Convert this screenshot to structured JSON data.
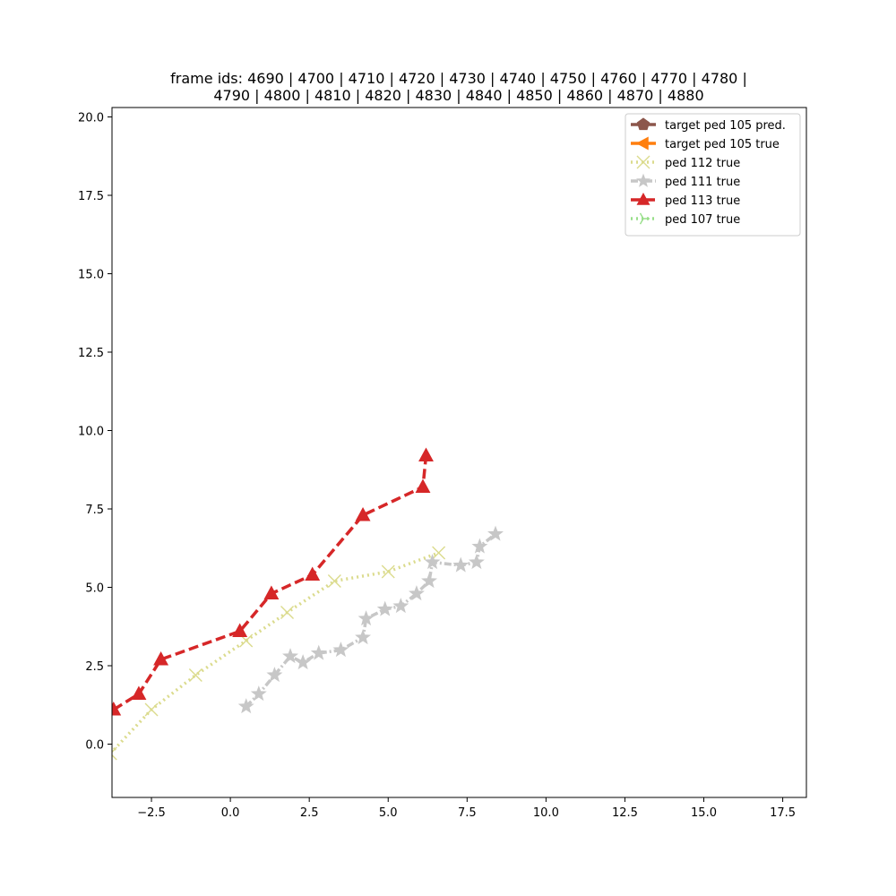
{
  "chart_data": {
    "type": "line",
    "title_lines": [
      "frame ids: 4690 | 4700 | 4710 | 4720 | 4730 | 4740 | 4750 | 4760 | 4770 | 4780 |",
      "4790 | 4800 | 4810 | 4820 | 4830 | 4840 | 4850 | 4860 | 4870 | 4880"
    ],
    "xlabel": "",
    "ylabel": "",
    "xlim": [
      -3.75,
      18.25
    ],
    "ylim": [
      -1.7,
      20.3
    ],
    "x_ticks": [
      -2.5,
      0.0,
      2.5,
      5.0,
      7.5,
      10.0,
      12.5,
      15.0,
      17.5
    ],
    "x_tick_labels": [
      "−2.5",
      "0.0",
      "2.5",
      "5.0",
      "7.5",
      "10.0",
      "12.5",
      "15.0",
      "17.5"
    ],
    "y_ticks": [
      0.0,
      2.5,
      5.0,
      7.5,
      10.0,
      12.5,
      15.0,
      17.5,
      20.0
    ],
    "y_tick_labels": [
      "0.0",
      "2.5",
      "5.0",
      "7.5",
      "10.0",
      "12.5",
      "15.0",
      "17.5",
      "20.0"
    ],
    "grid": false,
    "legend_position": "top-right",
    "series": [
      {
        "name": "target ped 105 pred.",
        "color": "#8c564b",
        "line_style": "solid",
        "marker": "pentagon",
        "points": []
      },
      {
        "name": "target ped 105 true",
        "color": "#ff7f0e",
        "line_style": "solid",
        "marker": "triangle-left",
        "points": []
      },
      {
        "name": "ped 112 true",
        "color": "#dbdb8d",
        "line_style": "dotted",
        "marker": "x",
        "points": [
          [
            -3.8,
            -0.3
          ],
          [
            -2.5,
            1.1
          ],
          [
            -1.1,
            2.2
          ],
          [
            0.5,
            3.3
          ],
          [
            1.8,
            4.2
          ],
          [
            3.3,
            5.2
          ],
          [
            5.0,
            5.5
          ],
          [
            6.6,
            6.1
          ]
        ]
      },
      {
        "name": "ped 111 true",
        "color": "#c7c7c7",
        "line_style": "mixed",
        "marker": "star",
        "points": [
          [
            0.5,
            1.2
          ],
          [
            0.9,
            1.6
          ],
          [
            1.4,
            2.2
          ],
          [
            1.9,
            2.8
          ],
          [
            2.3,
            2.6
          ],
          [
            2.8,
            2.9
          ],
          [
            3.5,
            3.0
          ],
          [
            4.2,
            3.4
          ],
          [
            4.3,
            4.0
          ],
          [
            4.9,
            4.3
          ],
          [
            5.4,
            4.4
          ],
          [
            5.9,
            4.8
          ],
          [
            6.3,
            5.2
          ],
          [
            6.4,
            5.8
          ],
          [
            7.3,
            5.7
          ],
          [
            7.8,
            5.8
          ],
          [
            7.9,
            6.3
          ],
          [
            8.4,
            6.7
          ]
        ]
      },
      {
        "name": "ped 113 true",
        "color": "#d62728",
        "line_style": "dashed",
        "marker": "triangle",
        "points": [
          [
            -3.7,
            1.1
          ],
          [
            -2.9,
            1.6
          ],
          [
            -2.2,
            2.7
          ],
          [
            0.3,
            3.6
          ],
          [
            1.3,
            4.8
          ],
          [
            2.6,
            5.4
          ],
          [
            4.2,
            7.3
          ],
          [
            6.1,
            8.2
          ],
          [
            6.2,
            9.2
          ]
        ]
      },
      {
        "name": "ped 107 true",
        "color": "#98df8a",
        "line_style": "dotted",
        "marker": "tri-right",
        "points": []
      }
    ]
  }
}
